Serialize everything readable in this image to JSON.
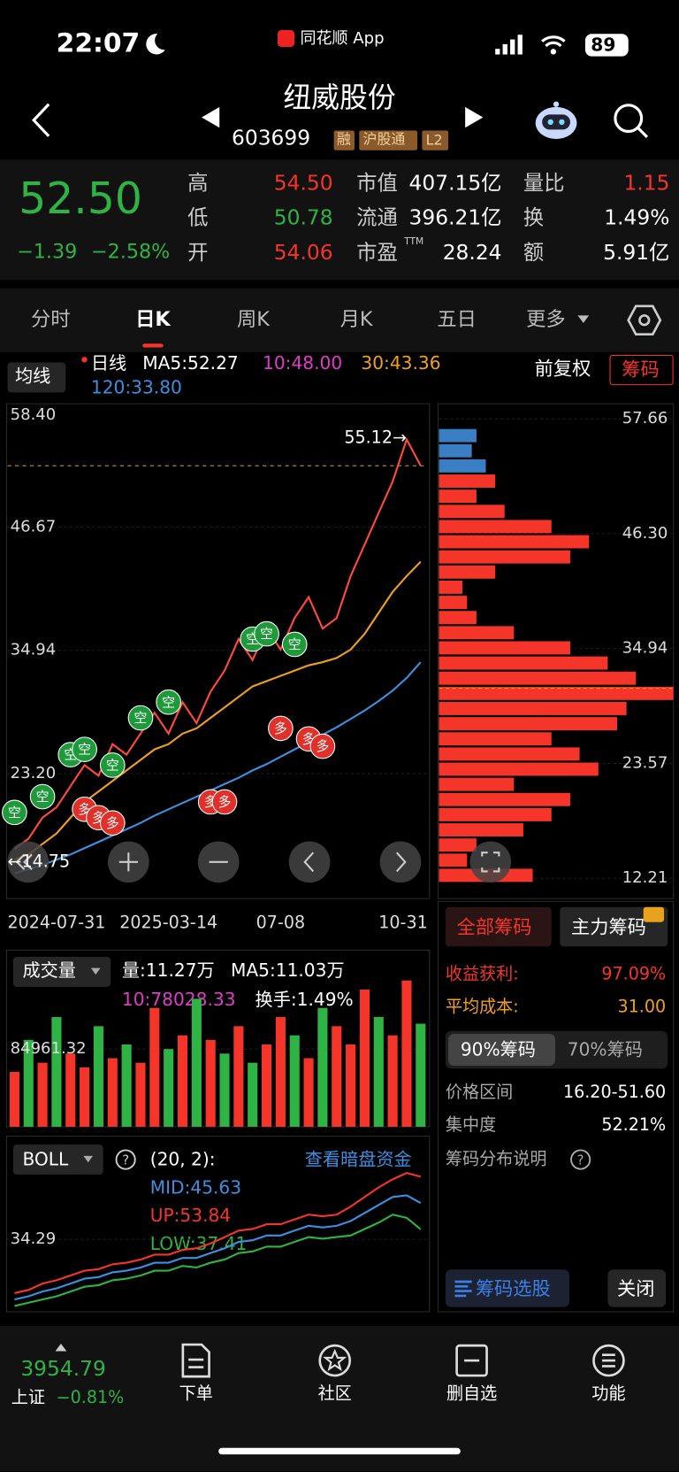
{
  "status_bar": {
    "time": "22:07",
    "app": "同花顺 App",
    "battery": "89"
  },
  "header": {
    "name": "纽威股份",
    "code": "603699",
    "tags": [
      "融",
      "沪股通",
      "L2"
    ]
  },
  "quote": {
    "price": "52.50",
    "change": "−1.39",
    "change_pct": "−2.58%",
    "pe_sup": "TTM",
    "stats": [
      {
        "label": "高",
        "value": "54.50"
      },
      {
        "label": "低",
        "value": "50.78"
      },
      {
        "label": "开",
        "value": "54.06"
      },
      {
        "label": "市值",
        "value": "407.15亿"
      },
      {
        "label": "流通",
        "value": "396.21亿"
      },
      {
        "label": "市盈",
        "value": "28.24"
      },
      {
        "label": "量比",
        "value": "1.15"
      },
      {
        "label": "换",
        "value": "1.49%"
      },
      {
        "label": "额",
        "value": "5.91亿"
      }
    ]
  },
  "tabs": [
    "分时",
    "日K",
    "周K",
    "月K",
    "五日",
    "更多"
  ],
  "kline_header": {
    "indicator": "均线",
    "day": "日线",
    "ma5": "MA5:52.27",
    "ma10": "10:48.00",
    "ma30": "30:43.36",
    "ma120": "120:33.80",
    "adjust": "前复权",
    "chips": "筹码"
  },
  "volume_header": {
    "name": "成交量",
    "vol": "量:11.27万",
    "ma5": "MA5:11.03万",
    "ma10": "10:78028.33",
    "turnover": "换手:1.49%"
  },
  "boll_header": {
    "name": "BOLL",
    "params": "(20, 2):",
    "link": "查看暗盘资金",
    "mid": "MID:45.63",
    "up": "UP:53.84",
    "low": "LOW:37.41"
  },
  "chip_panel": {
    "tabs": [
      "全部筹码",
      "主力筹码"
    ],
    "profit_label": "收益获利:",
    "profit": "97.09%",
    "cost_label": "平均成本:",
    "cost": "31.00",
    "ranges": [
      "90%筹码",
      "70%筹码"
    ],
    "range_label": "价格区间",
    "range": "16.20-51.60",
    "concentration_label": "集中度",
    "concentration": "52.21%",
    "help": "筹码分布说明",
    "select": "筹码选股",
    "close": "关闭"
  },
  "bottom_nav": {
    "index_value": "3954.79",
    "index_name": "上证",
    "index_change": "−0.81%",
    "items": [
      "下单",
      "社区",
      "删自选",
      "功能"
    ]
  },
  "chart_data": [
    {
      "type": "line",
      "categories": [
        "2024-07-31",
        null,
        null,
        null,
        null,
        null,
        null,
        null,
        null,
        null,
        null,
        "2025-03-14",
        null,
        null,
        null,
        null,
        null,
        null,
        null,
        "07-08",
        null,
        null,
        null,
        null,
        null,
        null,
        null,
        null,
        null,
        "10-31"
      ],
      "ylim": [
        11.3,
        58.4
      ],
      "yticks": [
        {
          "value": 58.4,
          "label": "58.40"
        },
        {
          "value": 46.67,
          "label": "46.67"
        },
        {
          "value": 34.94,
          "label": "34.94"
        },
        {
          "value": 23.2,
          "label": "23.20"
        }
      ],
      "series": [
        {
          "color": "#ff4a3d",
          "values": [
            16,
            17,
            19,
            20,
            22,
            24,
            23,
            26,
            25,
            27,
            29,
            27,
            30,
            28,
            31,
            33,
            36,
            34,
            37,
            35,
            38,
            40,
            37,
            38,
            42,
            45,
            48,
            51,
            55,
            52.5
          ]
        },
        {
          "color": "#f0a020",
          "values": [
            15,
            15.5,
            16.5,
            17.5,
            19,
            20.5,
            21.5,
            22.5,
            23.5,
            24.5,
            25.5,
            26,
            27,
            27.5,
            28.5,
            29.5,
            30.5,
            31.5,
            32,
            32.5,
            33,
            33.5,
            33.8,
            34.2,
            35,
            36.5,
            38.5,
            40.5,
            42,
            43.36
          ]
        },
        {
          "color": "#3d8fe0",
          "values": [
            13.7,
            14.1,
            14.5,
            15,
            15.5,
            16.1,
            16.7,
            17.3,
            17.9,
            18.5,
            19.2,
            19.8,
            20.4,
            21,
            21.6,
            22.2,
            22.8,
            23.5,
            24.1,
            24.8,
            25.5,
            26.2,
            26.9,
            27.6,
            28.4,
            29.2,
            30.1,
            31.1,
            32.3,
            33.8
          ]
        }
      ],
      "annotations": [
        {
          "text": "55.12→",
          "x": 28,
          "y": 55.12
        },
        {
          "text": "←14.75",
          "x": 0,
          "y": 14.75
        },
        {
          "text": "空",
          "x": 0,
          "y": 19.5,
          "color": "#1f9a3a"
        },
        {
          "text": "空",
          "x": 2,
          "y": 21,
          "color": "#1f9a3a"
        },
        {
          "text": "空",
          "x": 4,
          "y": 25,
          "color": "#1f9a3a"
        },
        {
          "text": "空",
          "x": 5,
          "y": 25.5,
          "color": "#1f9a3a"
        },
        {
          "text": "空",
          "x": 7,
          "y": 24,
          "color": "#1f9a3a"
        },
        {
          "text": "空",
          "x": 9,
          "y": 28.5,
          "color": "#1f9a3a"
        },
        {
          "text": "空",
          "x": 11,
          "y": 30,
          "color": "#1f9a3a"
        },
        {
          "text": "空",
          "x": 17,
          "y": 36,
          "color": "#1f9a3a"
        },
        {
          "text": "空",
          "x": 18,
          "y": 36.5,
          "color": "#1f9a3a"
        },
        {
          "text": "空",
          "x": 20,
          "y": 35.5,
          "color": "#1f9a3a"
        },
        {
          "text": "多",
          "x": 5,
          "y": 19.8,
          "color": "#e0302a"
        },
        {
          "text": "多",
          "x": 6,
          "y": 19,
          "color": "#e0302a"
        },
        {
          "text": "多",
          "x": 7,
          "y": 18.5,
          "color": "#e0302a"
        },
        {
          "text": "多",
          "x": 14,
          "y": 20.5,
          "color": "#e0302a"
        },
        {
          "text": "多",
          "x": 15,
          "y": 20.5,
          "color": "#e0302a"
        },
        {
          "text": "多",
          "x": 19,
          "y": 27.5,
          "color": "#e0302a"
        },
        {
          "text": "多",
          "x": 21,
          "y": 26.5,
          "color": "#e0302a"
        },
        {
          "text": "多",
          "x": 22,
          "y": 25.8,
          "color": "#e0302a"
        }
      ]
    },
    {
      "type": "bar",
      "ylim": [
        0,
        190000
      ],
      "yticks": [
        84961.32
      ],
      "values": [
        60000,
        95000,
        70000,
        120000,
        80000,
        65000,
        110000,
        75000,
        90000,
        70000,
        130000,
        85000,
        100000,
        140000,
        95000,
        80000,
        110000,
        70000,
        90000,
        120000,
        100000,
        75000,
        130000,
        110000,
        90000,
        150000,
        120000,
        100000,
        160000,
        112700
      ],
      "colors": [
        "#f5352a",
        "#2fb344",
        "#f5352a",
        "#2fb344",
        "#f5352a",
        "#f5352a",
        "#2fb344",
        "#f5352a",
        "#2fb344",
        "#f5352a",
        "#f5352a",
        "#2fb344",
        "#f5352a",
        "#2fb344",
        "#f5352a",
        "#2fb344",
        "#f5352a",
        "#2fb344",
        "#f5352a",
        "#f5352a",
        "#2fb344",
        "#f5352a",
        "#2fb344",
        "#f5352a",
        "#f5352a",
        "#f5352a",
        "#2fb344",
        "#f5352a",
        "#f5352a",
        "#2fb344"
      ]
    },
    {
      "type": "line",
      "ylim": [
        11.7,
        65.9
      ],
      "yticks": [
        34.29
      ],
      "series": [
        {
          "color": "#3d8fe0",
          "values": [
            15.5,
            16.5,
            18,
            19,
            20.5,
            22,
            22.5,
            24,
            24.5,
            25.5,
            27,
            27,
            28.5,
            28.5,
            30,
            31.5,
            33.5,
            34,
            35.5,
            35.5,
            37,
            38.5,
            38,
            38.5,
            40,
            42.5,
            45,
            47.5,
            48,
            45.63
          ]
        },
        {
          "color": "#f5352a",
          "values": [
            17.5,
            18.5,
            20.5,
            21.5,
            23,
            24.5,
            25,
            26.5,
            27,
            28,
            29.5,
            29.5,
            31,
            31.5,
            33,
            35,
            37,
            37.5,
            39,
            39,
            40.5,
            42,
            41.5,
            42,
            44.5,
            47.5,
            50.5,
            53,
            55,
            53.84
          ]
        },
        {
          "color": "#2fb344",
          "values": [
            13.5,
            14.5,
            15.5,
            16.5,
            18,
            19.5,
            20,
            21.5,
            22,
            23,
            24.5,
            24.5,
            26,
            25.5,
            27,
            28,
            30,
            30.5,
            32,
            32,
            33.5,
            35,
            34.5,
            35,
            35.5,
            37.5,
            39.5,
            42,
            41,
            37.41
          ]
        }
      ]
    },
    {
      "type": "barh",
      "ylim": [
        10.2,
        59.15
      ],
      "xlim": [
        0,
        250
      ],
      "yticks": [
        {
          "value": 57.66,
          "label": "57.66"
        },
        {
          "value": 46.3,
          "label": "46.30"
        },
        {
          "value": 34.94,
          "label": "34.94"
        },
        {
          "value": 23.57,
          "label": "23.57"
        },
        {
          "value": 12.21,
          "label": "12.21"
        }
      ],
      "y": [
        12.5,
        14,
        15.5,
        17,
        18.5,
        20,
        21.5,
        23,
        24.5,
        26,
        27.5,
        29,
        30.5,
        32,
        33.5,
        35,
        36.5,
        38,
        39.5,
        41,
        42.5,
        44,
        45.5,
        47,
        48.5,
        50,
        51.5,
        53,
        54.5,
        56
      ],
      "values": [
        100,
        30,
        40,
        90,
        120,
        140,
        80,
        170,
        150,
        120,
        190,
        200,
        250,
        210,
        180,
        140,
        80,
        40,
        30,
        25,
        60,
        140,
        160,
        120,
        70,
        40,
        60,
        50,
        35,
        40
      ],
      "colors": [
        "#f5352a",
        "#f5352a",
        "#f5352a",
        "#f5352a",
        "#f5352a",
        "#f5352a",
        "#f5352a",
        "#f5352a",
        "#f5352a",
        "#f5352a",
        "#f5352a",
        "#f5352a",
        "#f5352a",
        "#f5352a",
        "#f5352a",
        "#f5352a",
        "#f5352a",
        "#f5352a",
        "#f5352a",
        "#f5352a",
        "#f5352a",
        "#f5352a",
        "#f5352a",
        "#f5352a",
        "#f5352a",
        "#f5352a",
        "#f5352a",
        "#3a7fc4",
        "#3a7fc4",
        "#3a7fc4"
      ],
      "ref_line": 31
    }
  ]
}
